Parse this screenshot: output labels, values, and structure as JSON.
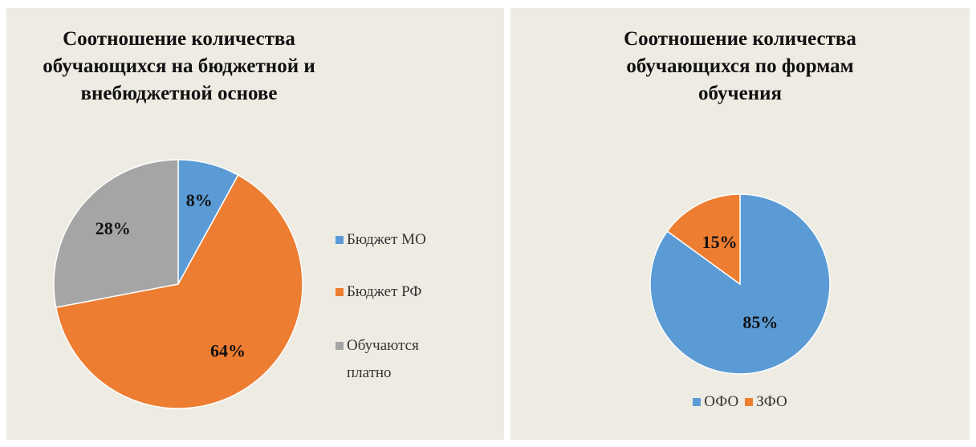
{
  "chart_data": [
    {
      "type": "pie",
      "title": "Соотношение количества\nобучающихся на бюджетной и\nвнебюджетной основе",
      "categories": [
        "Бюджет МО",
        "Бюджет РФ",
        "Обучаются платно"
      ],
      "values": [
        8,
        64,
        28
      ],
      "value_labels": [
        "8%",
        "64%",
        "28%"
      ],
      "colors": [
        "#5b9bd5",
        "#ed7d31",
        "#a5a5a5"
      ],
      "legend": "right"
    },
    {
      "type": "pie",
      "title": "Соотношение количества\nобучающихся по формам\nобучения",
      "categories": [
        "ОФО",
        "ЗФО"
      ],
      "values": [
        85,
        15
      ],
      "value_labels": [
        "85%",
        "15%"
      ],
      "colors": [
        "#5b9bd5",
        "#ed7d31"
      ],
      "legend": "bottom"
    }
  ]
}
